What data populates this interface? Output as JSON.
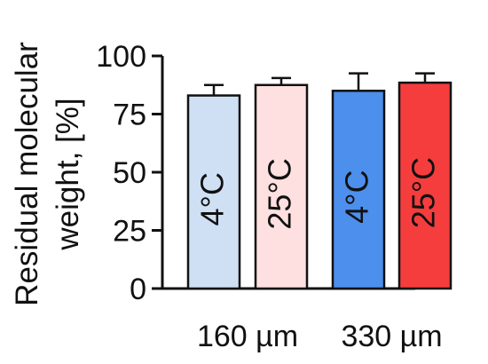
{
  "chart_data": {
    "type": "bar",
    "ylabel_lines": [
      "Residual molecular",
      "weight, [%]"
    ],
    "ylim": [
      0,
      100
    ],
    "yticks": [
      0,
      25,
      50,
      75,
      100
    ],
    "groups": [
      {
        "label": "160 µm",
        "bar_indices": [
          0,
          1
        ]
      },
      {
        "label": "330 µm",
        "bar_indices": [
          2,
          3
        ]
      }
    ],
    "bars": [
      {
        "label": "4°C",
        "value": 83,
        "error": 4.5,
        "color": "#cfe0f5"
      },
      {
        "label": "25°C",
        "value": 87.5,
        "error": 3,
        "color": "#fde0df"
      },
      {
        "label": "4°C",
        "value": 85,
        "error": 7.5,
        "color": "#4d8fec"
      },
      {
        "label": "25°C",
        "value": 88.5,
        "error": 4,
        "color": "#f53d3d"
      }
    ],
    "grid": false,
    "legend": "none"
  }
}
